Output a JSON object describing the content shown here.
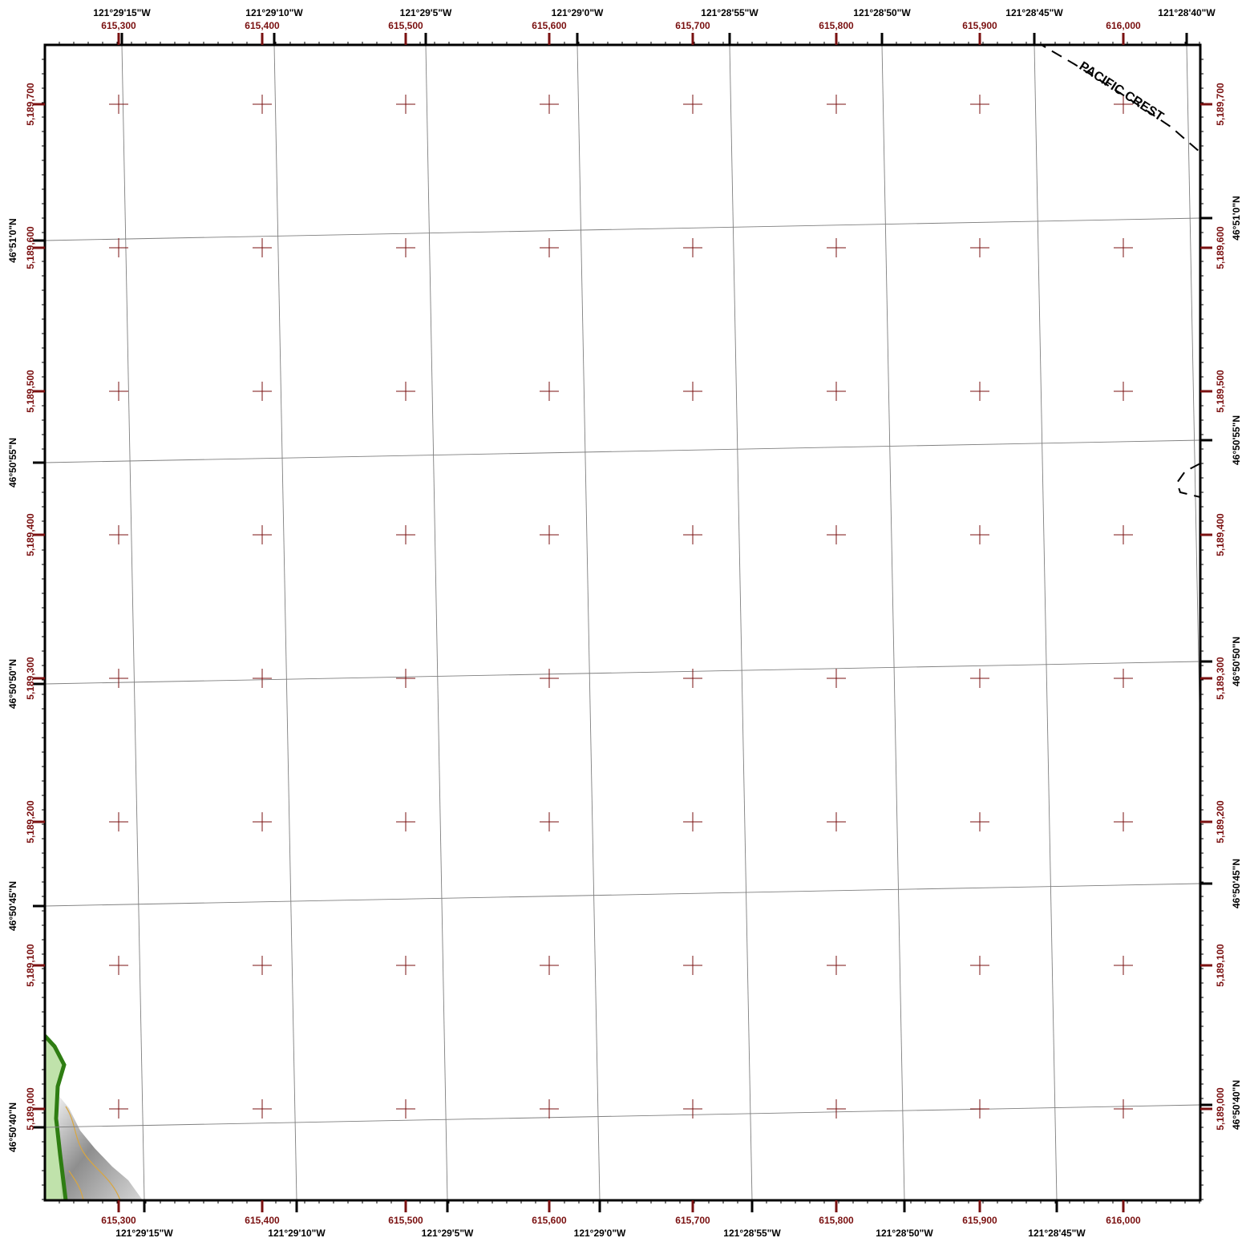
{
  "map": {
    "geo_longitude_labels": [
      "121°29'15\"W",
      "121°29'10\"W",
      "121°29'5\"W",
      "121°29'0\"W",
      "121°28'55\"W",
      "121°28'50\"W",
      "121°28'45\"W",
      "121°28'40\"W"
    ],
    "bottom_longitude_labels": [
      "121°29'15\"W",
      "121°29'10\"W",
      "121°29'5\"W",
      "121°29'0\"W",
      "121°28'55\"W",
      "121°28'50\"W",
      "121°28'45\"W"
    ],
    "geo_latitude_labels": [
      "46°51'0\"N",
      "46°50'55\"N",
      "46°50'50\"N",
      "46°50'45\"N",
      "46°50'40\"N"
    ],
    "utm_easting_labels": [
      "615,300",
      "615,400",
      "615,500",
      "615,600",
      "615,700",
      "615,800",
      "615,900",
      "616,000"
    ],
    "utm_northing_labels": [
      "5,189,700",
      "5,189,600",
      "5,189,500",
      "5,189,400",
      "5,189,300",
      "5,189,200",
      "5,189,100",
      "5,189,000"
    ],
    "trail_label": "PACIFIC CREST",
    "colors": {
      "frame": "#000000",
      "utm_grid": "#7a1010",
      "geo_graticule": "#7f7f7f",
      "trail": "#000000",
      "boundary_line": "#2e7d12",
      "boundary_fill": "#b9dfa2",
      "terrain_shade": "#9a9a9a",
      "contour": "#d9a640"
    }
  }
}
